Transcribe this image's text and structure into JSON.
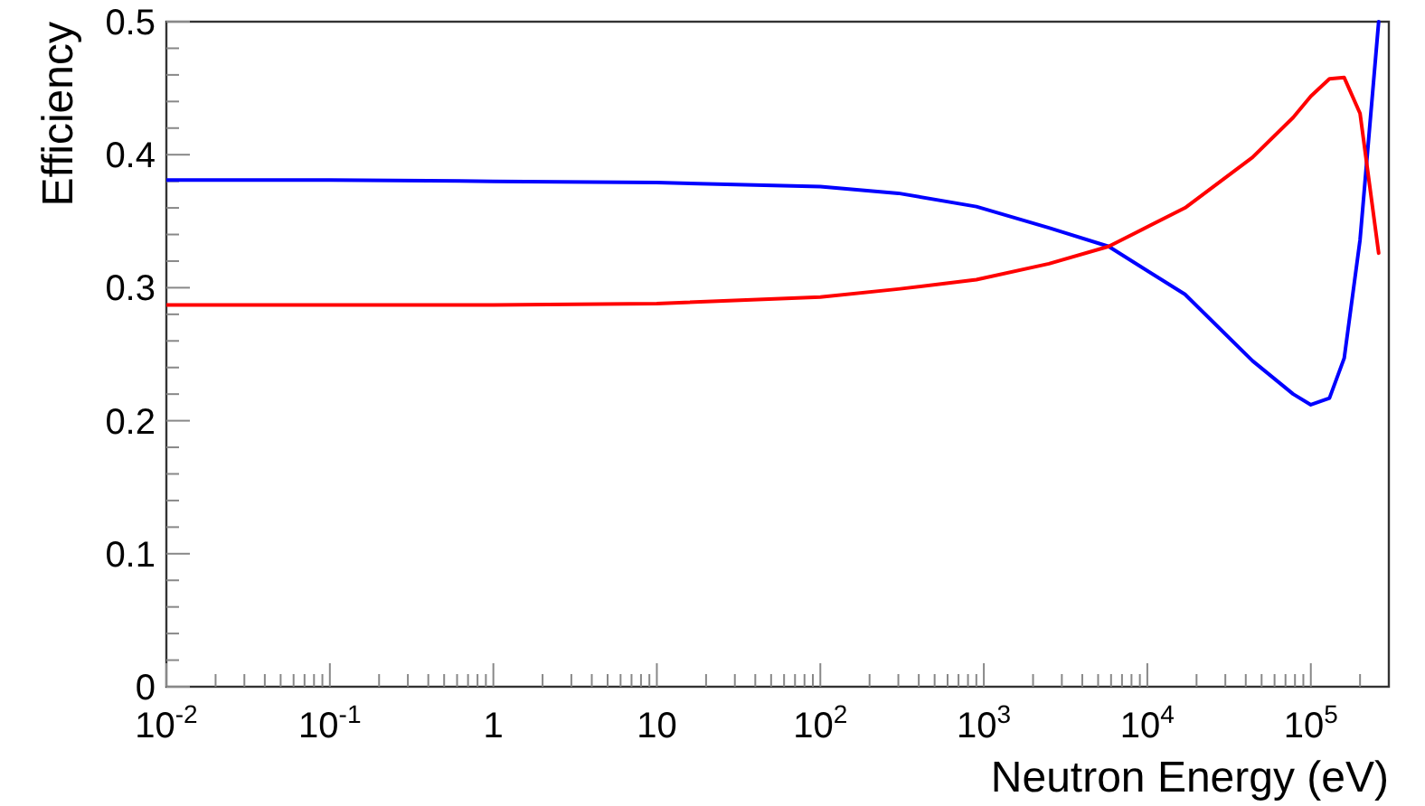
{
  "chart_data": {
    "type": "line",
    "xlabel": "Neutron Energy (eV)",
    "ylabel": "Efficiency",
    "log": "x",
    "marker": "none",
    "line_style": "solid",
    "xlim": [
      0.01,
      300000
    ],
    "ylim": [
      0,
      0.5
    ],
    "xticks": [
      {
        "value": 0.01,
        "label": "10$^{-2}$"
      },
      {
        "value": 0.02,
        "label": null
      },
      {
        "value": 0.03,
        "label": null
      },
      {
        "value": 0.04,
        "label": null
      },
      {
        "value": 0.05,
        "label": null
      },
      {
        "value": 0.06,
        "label": null
      },
      {
        "value": 0.07,
        "label": null
      },
      {
        "value": 0.08,
        "label": null
      },
      {
        "value": 0.09,
        "label": null
      },
      {
        "value": 0.1,
        "label": "10$^{-1}$"
      },
      {
        "value": 0.2,
        "label": null
      },
      {
        "value": 0.3,
        "label": null
      },
      {
        "value": 0.4,
        "label": null
      },
      {
        "value": 0.5,
        "label": null
      },
      {
        "value": 0.6,
        "label": null
      },
      {
        "value": 0.7,
        "label": null
      },
      {
        "value": 0.8,
        "label": null
      },
      {
        "value": 0.9,
        "label": null
      },
      1,
      {
        "value": 2,
        "label": null
      },
      {
        "value": 3,
        "label": null
      },
      {
        "value": 4,
        "label": null
      },
      {
        "value": 5,
        "label": null
      },
      {
        "value": 6,
        "label": null
      },
      {
        "value": 7,
        "label": null
      },
      {
        "value": 8,
        "label": null
      },
      {
        "value": 9,
        "label": null
      },
      10,
      {
        "value": 20,
        "label": null
      },
      {
        "value": 30,
        "label": null
      },
      {
        "value": 40,
        "label": null
      },
      {
        "value": 50,
        "label": null
      },
      {
        "value": 60,
        "label": null
      },
      {
        "value": 70,
        "label": null
      },
      {
        "value": 80,
        "label": null
      },
      {
        "value": 90,
        "label": null
      },
      {
        "value": 100,
        "label": "10$^{2}$"
      },
      {
        "value": 200,
        "label": null
      },
      {
        "value": 300,
        "label": null
      },
      {
        "value": 400,
        "label": null
      },
      {
        "value": 500,
        "label": null
      },
      {
        "value": 600,
        "label": null
      },
      {
        "value": 700,
        "label": null
      },
      {
        "value": 800,
        "label": null
      },
      {
        "value": 900,
        "label": null
      },
      {
        "value": 1000,
        "label": "10$^{3}$"
      },
      {
        "value": 2000,
        "label": null
      },
      {
        "value": 3000,
        "label": null
      },
      {
        "value": 4000,
        "label": null
      },
      {
        "value": 5000,
        "label": null
      },
      {
        "value": 6000,
        "label": null
      },
      {
        "value": 7000,
        "label": null
      },
      {
        "value": 8000,
        "label": null
      },
      {
        "value": 9000,
        "label": null
      },
      {
        "value": 10000,
        "label": "10$^{4}$"
      },
      {
        "value": 20000,
        "label": null
      },
      {
        "value": 30000,
        "label": null
      },
      {
        "value": 40000,
        "label": null
      },
      {
        "value": 50000,
        "label": null
      },
      {
        "value": 60000,
        "label": null
      },
      {
        "value": 70000,
        "label": null
      },
      {
        "value": 80000,
        "label": null
      },
      {
        "value": 90000,
        "label": null
      },
      {
        "value": 100000,
        "label": "10$^{5}$"
      },
      {
        "value": 200000,
        "label": null
      }
    ],
    "yticks": [
      0,
      {
        "value": 0.02,
        "label": null
      },
      {
        "value": 0.04,
        "label": null
      },
      {
        "value": 0.06,
        "label": null
      },
      {
        "value": 0.08,
        "label": null
      },
      0.1,
      {
        "value": 0.12,
        "label": null
      },
      {
        "value": 0.14,
        "label": null
      },
      {
        "value": 0.16,
        "label": null
      },
      {
        "value": 0.18,
        "label": null
      },
      0.2,
      {
        "value": 0.22,
        "label": null
      },
      {
        "value": 0.24,
        "label": null
      },
      {
        "value": 0.26,
        "label": null
      },
      {
        "value": 0.28,
        "label": null
      },
      0.3,
      {
        "value": 0.32,
        "label": null
      },
      {
        "value": 0.34,
        "label": null
      },
      {
        "value": 0.36,
        "label": null
      },
      {
        "value": 0.38,
        "label": null
      },
      0.4,
      {
        "value": 0.42,
        "label": null
      },
      {
        "value": 0.44,
        "label": null
      },
      {
        "value": 0.46,
        "label": null
      },
      {
        "value": 0.48,
        "label": null
      },
      0.5
    ],
    "series": [
      {
        "color": "#0000ff",
        "x": [
          0.01,
          0.1,
          1,
          10,
          100,
          300,
          900,
          2500,
          5800,
          17000,
          44000,
          78000,
          100000,
          130000,
          160000,
          200000,
          260000
        ],
        "values": [
          0.381,
          0.381,
          0.38,
          0.379,
          0.376,
          0.371,
          0.361,
          0.345,
          0.331,
          0.295,
          0.245,
          0.22,
          0.212,
          0.217,
          0.247,
          0.336,
          0.5
        ]
      },
      {
        "color": "#ff0000",
        "x": [
          0.01,
          0.1,
          1,
          10,
          100,
          300,
          900,
          2500,
          5800,
          17000,
          44000,
          78000,
          100000,
          130000,
          160000,
          200000,
          260000
        ],
        "values": [
          0.287,
          0.287,
          0.287,
          0.288,
          0.293,
          0.299,
          0.306,
          0.318,
          0.331,
          0.36,
          0.398,
          0.428,
          0.444,
          0.457,
          0.458,
          0.431,
          0.326
        ]
      }
    ]
  }
}
